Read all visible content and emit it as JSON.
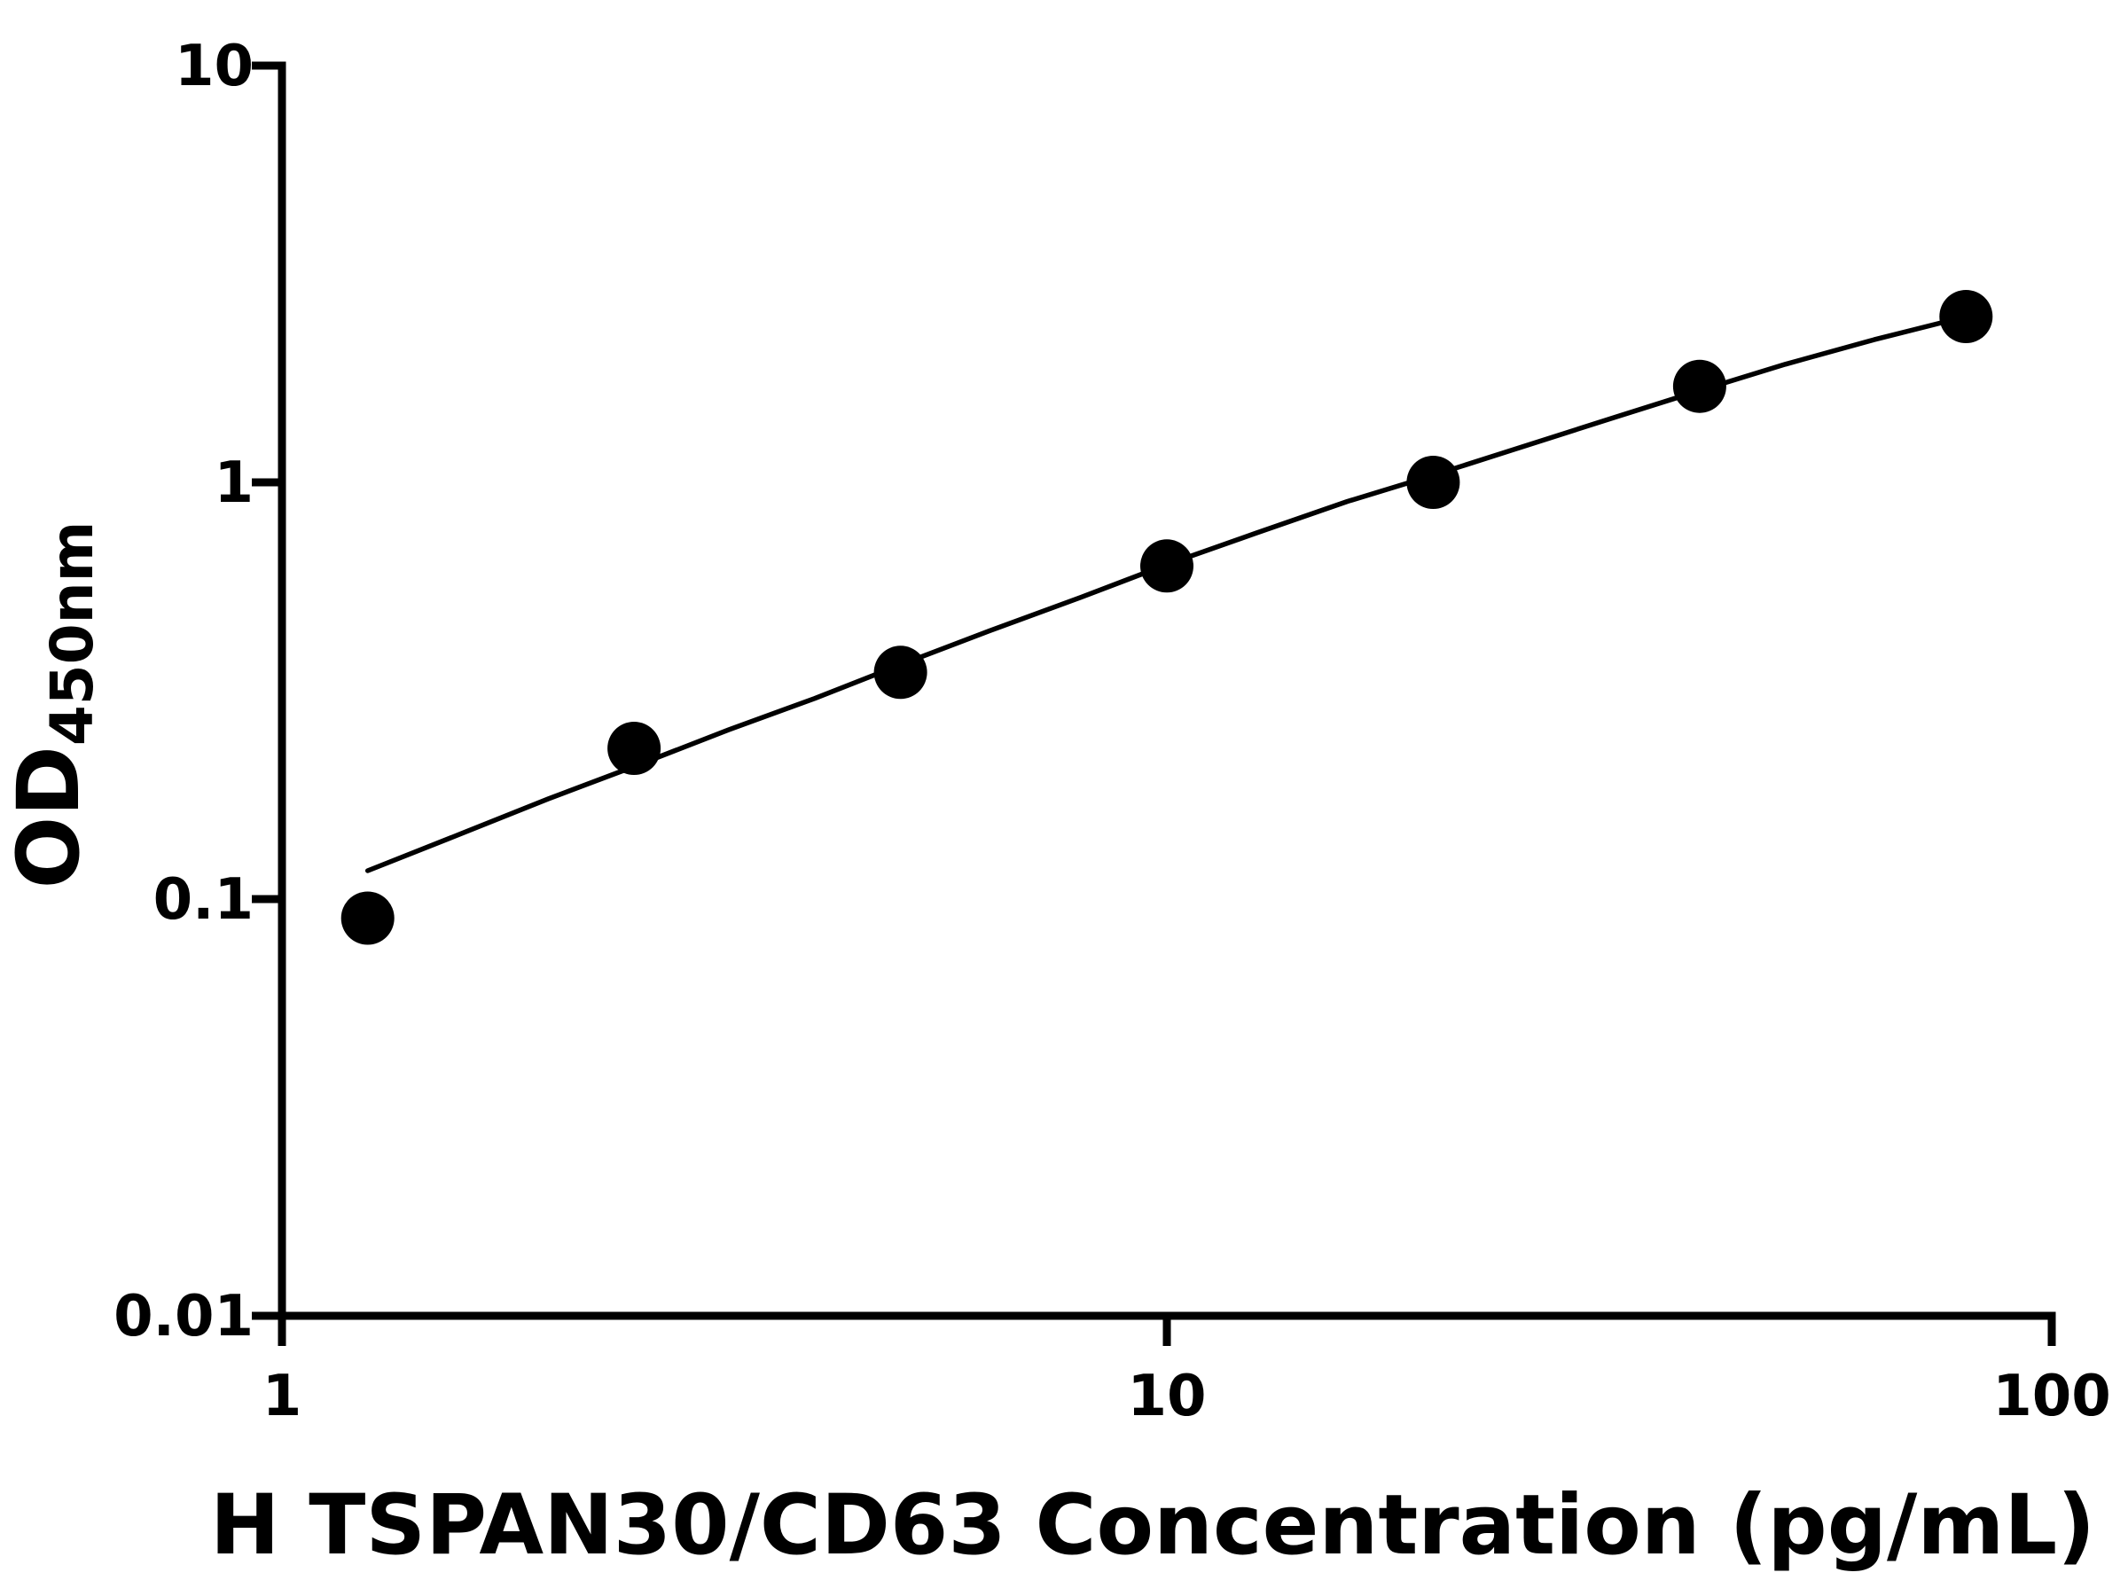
{
  "chart_data": {
    "type": "scatter",
    "title": "",
    "xlabel": "H TSPAN30/CD63 Concentration (pg/mL)",
    "ylabel_main": "OD",
    "ylabel_sub": "450nm",
    "x_scale": "log",
    "y_scale": "log",
    "xlim": [
      1,
      100
    ],
    "ylim": [
      0.01,
      10
    ],
    "x_ticks": [
      1,
      10,
      100
    ],
    "x_tick_labels": [
      "1",
      "10",
      "100"
    ],
    "y_ticks": [
      0.01,
      0.1,
      1,
      10
    ],
    "y_tick_labels": [
      "0.01",
      "0.1",
      "1",
      "10"
    ],
    "grid": false,
    "legend": null,
    "marker": "filled-circle",
    "marker_radius_px": 30,
    "points": [
      {
        "x": 1.25,
        "y": 0.09
      },
      {
        "x": 2.5,
        "y": 0.23
      },
      {
        "x": 5,
        "y": 0.35
      },
      {
        "x": 10,
        "y": 0.63
      },
      {
        "x": 20,
        "y": 1.0
      },
      {
        "x": 40,
        "y": 1.7
      },
      {
        "x": 80,
        "y": 2.5
      }
    ],
    "fit_curve": [
      [
        1.25,
        0.117
      ],
      [
        1.6,
        0.144
      ],
      [
        2.0,
        0.174
      ],
      [
        2.5,
        0.208
      ],
      [
        3.2,
        0.255
      ],
      [
        4,
        0.303
      ],
      [
        5,
        0.365
      ],
      [
        6.3,
        0.44
      ],
      [
        8,
        0.53
      ],
      [
        10,
        0.635
      ],
      [
        12.6,
        0.755
      ],
      [
        16,
        0.9
      ],
      [
        20,
        1.04
      ],
      [
        25,
        1.21
      ],
      [
        32,
        1.43
      ],
      [
        40,
        1.66
      ],
      [
        50,
        1.92
      ],
      [
        63,
        2.2
      ],
      [
        80,
        2.5
      ]
    ],
    "colors": {
      "points": "#000000",
      "line": "#000000",
      "axis": "#000000",
      "background": "#ffffff"
    }
  }
}
